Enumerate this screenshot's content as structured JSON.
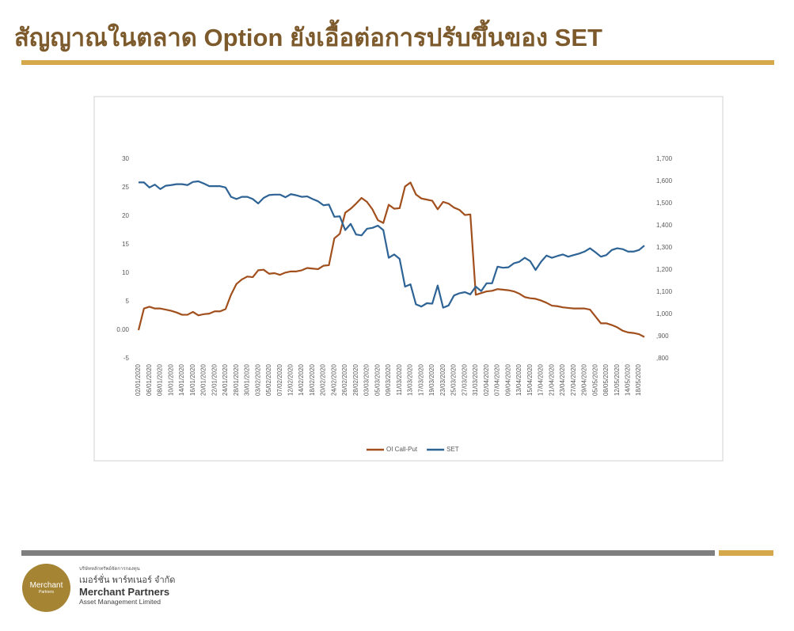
{
  "header": {
    "title": "สัญญาณในตลาด Option ยังเอื้อต่อการปรับขึ้นของ SET"
  },
  "footer": {
    "logo_line1": "Merchant",
    "logo_line2": "Partners",
    "company_th_small": "บริษัทหลักทรัพย์จัดการกองทุน",
    "company_th": "เมอร์ชั่น พาร์ทเนอร์ จำกัด",
    "company_en": "Merchant Partners",
    "company_en_sub": "Asset Management Limited"
  },
  "chart_data": {
    "type": "line",
    "categories": [
      "02/01/2020",
      null,
      "06/01/2020",
      null,
      "08/01/2020",
      null,
      "10/01/2020",
      null,
      "14/01/2020",
      null,
      "16/01/2020",
      null,
      "20/01/2020",
      null,
      "22/01/2020",
      null,
      "24/01/2020",
      null,
      "28/01/2020",
      null,
      "30/01/2020",
      null,
      "03/02/2020",
      null,
      "05/02/2020",
      null,
      "07/02/2020",
      null,
      "12/02/2020",
      null,
      "14/02/2020",
      null,
      "18/02/2020",
      null,
      "20/02/2020",
      null,
      "24/02/2020",
      null,
      "26/02/2020",
      null,
      "28/02/2020",
      null,
      "03/03/2020",
      null,
      "05/03/2020",
      null,
      "09/03/2020",
      null,
      "11/03/2020",
      null,
      "13/03/2020",
      null,
      "17/03/2020",
      null,
      "19/03/2020",
      null,
      "23/03/2020",
      null,
      "25/03/2020",
      null,
      "27/03/2020",
      null,
      "31/03/2020",
      null,
      "02/04/2020",
      null,
      "07/04/2020",
      null,
      "09/04/2020",
      null,
      "13/04/2020",
      null,
      "15/04/2020",
      null,
      "17/04/2020",
      null,
      "21/04/2020",
      null,
      "23/04/2020",
      null,
      "27/04/2020",
      null,
      "29/04/2020",
      null,
      "05/05/2020",
      null,
      "08/05/2020",
      null,
      "12/05/2020",
      null,
      "14/05/2020",
      null,
      "18/05/2020",
      null
    ],
    "series": [
      {
        "name": "OI Call-Put",
        "color": "#a14f1c",
        "values": [
          0,
          3.8,
          4.1,
          3.8,
          3.8,
          3.6,
          3.4,
          3.1,
          2.7,
          2.7,
          3.2,
          2.6,
          2.8,
          2.9,
          3.3,
          3.3,
          3.7,
          6.2,
          8.1,
          8.9,
          9.4,
          9.3,
          10.5,
          10.6,
          9.9,
          10.0,
          9.7,
          10.1,
          10.3,
          10.3,
          10.5,
          10.9,
          10.8,
          10.7,
          11.3,
          11.4,
          16.1,
          16.9,
          20.6,
          21.3,
          22.2,
          23.2,
          22.5,
          21.2,
          19.3,
          18.8,
          22.0,
          21.3,
          21.4,
          25.2,
          25.9,
          23.8,
          23.1,
          22.9,
          22.7,
          21.2,
          22.5,
          22.2,
          21.5,
          21.1,
          20.2,
          20.3,
          6.2,
          6.5,
          6.8,
          6.9,
          7.2,
          7.1,
          7.0,
          6.8,
          6.4,
          5.8,
          5.6,
          5.5,
          5.2,
          4.8,
          4.3,
          4.2,
          4.0,
          3.9,
          3.8,
          3.8,
          3.8,
          3.6,
          2.4,
          1.2,
          1.2,
          0.9,
          0.5,
          -0.1,
          -0.4,
          -0.5,
          -0.7,
          -1.2
        ]
      },
      {
        "name": "SET",
        "color": "#2e6396",
        "axis": "y2",
        "values": [
          1595,
          1595,
          1572,
          1585,
          1565,
          1580,
          1583,
          1587,
          1587,
          1583,
          1597,
          1600,
          1590,
          1578,
          1578,
          1578,
          1572,
          1530,
          1520,
          1530,
          1530,
          1520,
          1500,
          1525,
          1538,
          1540,
          1540,
          1528,
          1542,
          1537,
          1530,
          1532,
          1520,
          1510,
          1492,
          1495,
          1440,
          1442,
          1380,
          1408,
          1360,
          1356,
          1386,
          1390,
          1400,
          1380,
          1255,
          1270,
          1250,
          1125,
          1135,
          1045,
          1035,
          1050,
          1048,
          1130,
          1030,
          1040,
          1085,
          1095,
          1100,
          1090,
          1125,
          1105,
          1140,
          1140,
          1215,
          1210,
          1212,
          1230,
          1237,
          1255,
          1240,
          1200,
          1237,
          1265,
          1255,
          1263,
          1270,
          1260,
          1267,
          1274,
          1283,
          1298,
          1280,
          1260,
          1267,
          1290,
          1298,
          1294,
          1283,
          1283,
          1290,
          1310
        ]
      }
    ],
    "ylim": [
      -5,
      30
    ],
    "yticks": [
      -5,
      {
        "value": 0,
        "label": "0.00"
      },
      5,
      10,
      15,
      20,
      25,
      30
    ],
    "y2lim": [
      800,
      1700
    ],
    "y2ticks": [
      {
        "value": 800,
        "label": ",800"
      },
      {
        "value": 900,
        "label": ",900"
      },
      {
        "value": 1000,
        "label": "1,000"
      },
      {
        "value": 1100,
        "label": "1,100"
      },
      {
        "value": 1200,
        "label": "1,200"
      },
      {
        "value": 1300,
        "label": "1,300"
      },
      {
        "value": 1400,
        "label": "1,400"
      },
      {
        "value": 1500,
        "label": "1,500"
      },
      {
        "value": 1600,
        "label": "1,600"
      },
      {
        "value": 1700,
        "label": "1,700"
      }
    ],
    "grid": false,
    "legend": "bottom"
  }
}
